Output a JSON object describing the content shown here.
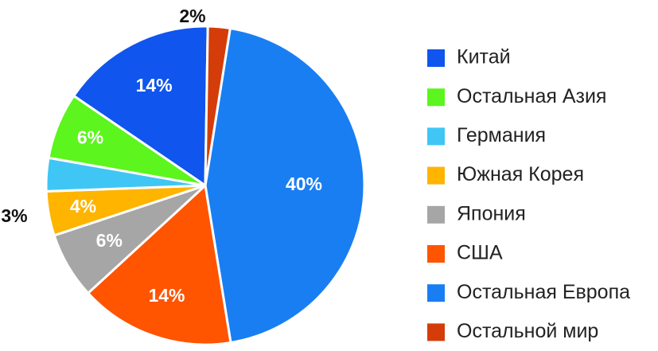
{
  "chart_data": {
    "type": "pie",
    "title": "",
    "start_angle_deg": -81,
    "direction": "clockwise",
    "legend_position": "right",
    "slices": [
      {
        "label": "Остальная Европа",
        "value": 40,
        "display": "40%",
        "color": "#1a7ef3",
        "label_color": "#ffffff"
      },
      {
        "label": "США",
        "value": 14,
        "display": "14%",
        "color": "#ff5400",
        "label_color": "#ffffff"
      },
      {
        "label": "Япония",
        "value": 6,
        "display": "6%",
        "color": "#a6a6a6",
        "label_color": "#ffffff"
      },
      {
        "label": "Южная Корея",
        "value": 4,
        "display": "4%",
        "color": "#ffb400",
        "label_color": "#ffffff"
      },
      {
        "label": "Германия",
        "value": 3,
        "display": "3%",
        "color": "#3fc6f5",
        "label_color": "#111111"
      },
      {
        "label": "Остальная Азия",
        "value": 6,
        "display": "6%",
        "color": "#5cf51e",
        "label_color": "#ffffff"
      },
      {
        "label": "Китай",
        "value": 14,
        "display": "14%",
        "color": "#0f55ee",
        "label_color": "#ffffff"
      },
      {
        "label": "Остальной мир",
        "value": 2,
        "display": "2%",
        "color": "#d43d09",
        "label_color": "#111111"
      }
    ],
    "legend": [
      {
        "label": "Китай",
        "color": "#0f55ee"
      },
      {
        "label": "Остальная Азия",
        "color": "#5cf51e"
      },
      {
        "label": "Германия",
        "color": "#3fc6f5"
      },
      {
        "label": "Южная Корея",
        "color": "#ffb400"
      },
      {
        "label": "Япония",
        "color": "#a6a6a6"
      },
      {
        "label": "США",
        "color": "#ff5400"
      },
      {
        "label": "Остальная Европа",
        "color": "#1a7ef3"
      },
      {
        "label": "Остальной мир",
        "color": "#d43d09"
      }
    ]
  }
}
